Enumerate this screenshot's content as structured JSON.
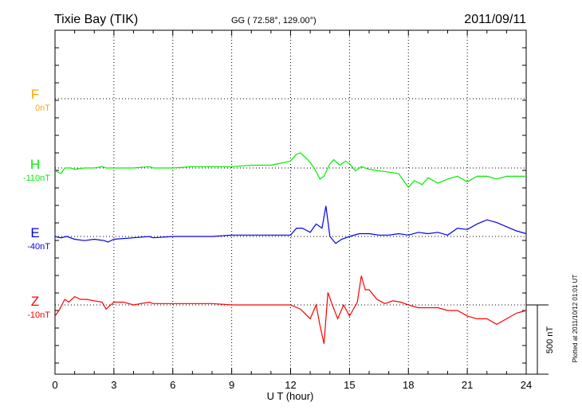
{
  "header": {
    "station": "Tixie Bay (TIK)",
    "coords": "GG ( 72.58°, 129.00°)",
    "date": "2011/09/11"
  },
  "xlabel": "U T (hour)",
  "scale_label": "500 nT",
  "footer_note": "Plotted at 2011/10/12 01:01 UT",
  "chart_data": {
    "type": "line",
    "title": "Tixie Bay (TIK)",
    "xlabel": "U T (hour)",
    "xlim": [
      0,
      24
    ],
    "x_ticks": [
      0,
      3,
      6,
      9,
      12,
      15,
      18,
      21,
      24
    ],
    "x_tick_labels": [
      "0",
      "3",
      "6",
      "9",
      "12",
      "15",
      "18",
      "21",
      "24"
    ],
    "scale_bar_nT": 500,
    "grid": true,
    "series": [
      {
        "name": "F",
        "baseline_label": "0nT",
        "color": "#ffa500",
        "x": [],
        "values": []
      },
      {
        "name": "H",
        "baseline_label": "-110nT",
        "color": "#00ee00",
        "x": [
          0,
          0.3,
          0.5,
          0.8,
          1,
          1.5,
          2,
          2.4,
          2.6,
          3,
          4,
          4.8,
          5,
          6,
          7,
          8,
          9,
          10,
          11,
          12,
          12.3,
          12.5,
          12.8,
          13,
          13.2,
          13.5,
          13.7,
          14,
          14.2,
          14.5,
          14.8,
          15,
          15.3,
          15.6,
          16,
          16.5,
          17,
          17.5,
          17.8,
          18,
          18.3,
          18.7,
          19,
          19.5,
          20,
          20.5,
          21,
          21.5,
          22,
          22.5,
          23,
          23.5,
          24
        ],
        "values": [
          -20,
          -40,
          0,
          0,
          -10,
          0,
          0,
          10,
          0,
          0,
          0,
          10,
          0,
          0,
          10,
          10,
          10,
          20,
          20,
          50,
          100,
          110,
          70,
          40,
          0,
          -80,
          -60,
          30,
          60,
          20,
          50,
          30,
          -20,
          10,
          -10,
          -20,
          -30,
          -40,
          -100,
          -140,
          -90,
          -120,
          -70,
          -110,
          -80,
          -60,
          -100,
          -60,
          -60,
          -80,
          -60,
          -60,
          -60
        ]
      },
      {
        "name": "E",
        "baseline_label": "-40nT",
        "color": "#0000ee",
        "x": [
          0,
          0.3,
          0.6,
          1,
          1.5,
          2,
          2.5,
          2.7,
          3,
          4,
          4.8,
          5,
          6,
          7,
          8,
          9,
          10,
          11,
          12,
          12.3,
          12.6,
          13,
          13.3,
          13.6,
          13.8,
          14,
          14.3,
          14.6,
          15,
          15.5,
          16,
          16.5,
          17,
          17.5,
          18,
          18.5,
          19,
          19.5,
          20,
          20.5,
          21,
          21.5,
          22,
          22.5,
          23,
          23.5,
          24
        ],
        "values": [
          0,
          -10,
          0,
          -20,
          -30,
          -20,
          -30,
          -40,
          -20,
          -10,
          0,
          -10,
          0,
          0,
          0,
          10,
          10,
          10,
          10,
          60,
          60,
          30,
          90,
          60,
          220,
          0,
          -50,
          -20,
          0,
          20,
          20,
          10,
          10,
          20,
          10,
          30,
          20,
          30,
          10,
          60,
          50,
          90,
          120,
          100,
          70,
          40,
          20
        ]
      },
      {
        "name": "Z",
        "baseline_label": "-10nT",
        "color": "#ff0000",
        "x": [
          0,
          0.2,
          0.5,
          0.7,
          1,
          1.3,
          1.6,
          2,
          2.4,
          2.6,
          3,
          3.5,
          4,
          4.8,
          5,
          6,
          7,
          8,
          9,
          10,
          11,
          12,
          12.5,
          13,
          13.3,
          13.5,
          13.7,
          13.9,
          14.1,
          14.4,
          14.7,
          15,
          15.4,
          15.6,
          15.8,
          16,
          16.4,
          16.8,
          17.2,
          17.6,
          18,
          18.5,
          19,
          19.5,
          20,
          20.5,
          21,
          21.5,
          22,
          22.5,
          23,
          23.5,
          24
        ],
        "values": [
          -80,
          -40,
          40,
          20,
          60,
          40,
          40,
          30,
          20,
          -30,
          20,
          20,
          0,
          20,
          10,
          10,
          10,
          10,
          0,
          0,
          0,
          0,
          -30,
          -100,
          0,
          -150,
          -280,
          90,
          10,
          -100,
          0,
          -80,
          20,
          210,
          110,
          110,
          40,
          10,
          30,
          20,
          0,
          -20,
          -20,
          -20,
          -40,
          -40,
          -80,
          -100,
          -100,
          -140,
          -100,
          -60,
          -40
        ]
      }
    ]
  }
}
